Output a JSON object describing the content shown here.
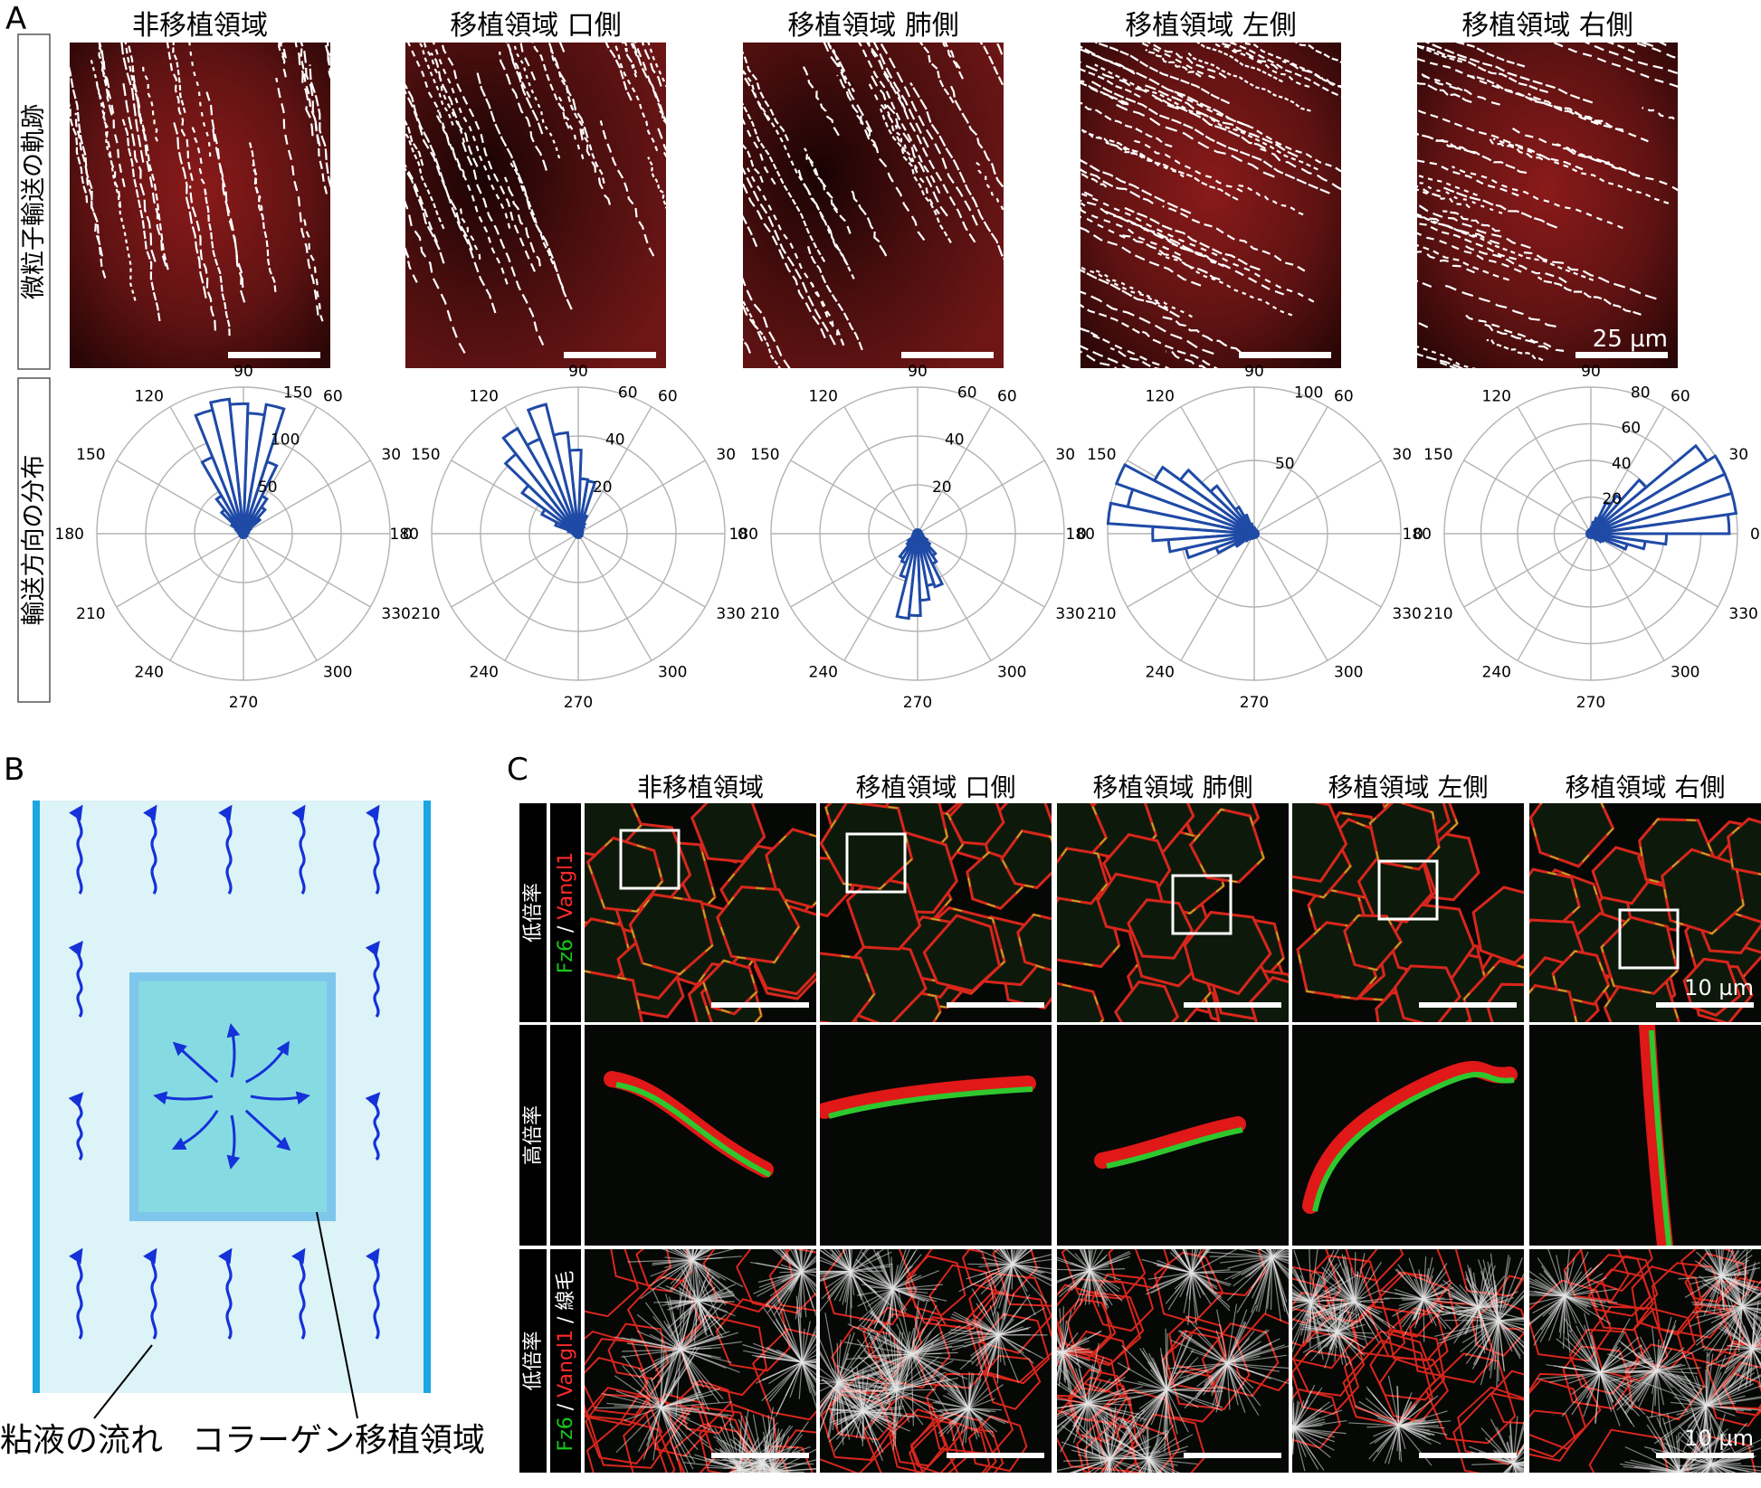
{
  "panel_a": {
    "letter": "A",
    "columns": [
      "非移植領域",
      "移植領域 口側",
      "移植領域 肺側",
      "移植領域 左側",
      "移植領域 右側"
    ],
    "row1_label": "微粒子輸送の軌跡",
    "row2_label": "輸送方向の分布",
    "scalebar_label": "25 µm",
    "angle_labels": [
      "0",
      "30",
      "60",
      "90",
      "120",
      "150",
      "180",
      "210",
      "240",
      "270",
      "300",
      "330"
    ],
    "polar": [
      {
        "rings": [
          "50",
          "100",
          "150"
        ],
        "rmax": 150,
        "dir": 92,
        "scale": 0.07,
        "peak": 1.0
      },
      {
        "rings": [
          "20",
          "40",
          "60"
        ],
        "rmax": 60,
        "dir": 110,
        "scale": 0.1,
        "peak": 0.9
      },
      {
        "rings": [
          "20",
          "40",
          "60"
        ],
        "rmax": 60,
        "dir": 270,
        "scale": 0.2,
        "peak": 0.48
      },
      {
        "rings": [
          "50",
          "100"
        ],
        "rmax": 100,
        "dir": 165,
        "scale": 0.1,
        "peak": 1.0
      },
      {
        "rings": [
          "20",
          "40",
          "60",
          "80"
        ],
        "rmax": 80,
        "dir": 20,
        "scale": 0.1,
        "peak": 1.0
      }
    ]
  },
  "panel_b": {
    "letter": "B",
    "label_flow": "粘液の流れ",
    "label_graft": "コラーゲン移植領域",
    "colors": {
      "bg": "#dcf3f7",
      "wall": "#1aa6e0",
      "graft": "#86dbe2",
      "graft_border": "#7fc6ec",
      "arrow": "#1531d8"
    }
  },
  "panel_c": {
    "letter": "C",
    "columns": [
      "非移植領域",
      "移植領域 口側",
      "移植領域 肺側",
      "移植領域 左側",
      "移植領域 右側"
    ],
    "rows": [
      {
        "mag": "低倍率",
        "stain": [
          {
            "t": "Fz6",
            "c": "#19c619"
          },
          {
            "t": " / ",
            "c": "#ffffff"
          },
          {
            "t": "Vangl1",
            "c": "#ff2a2a"
          }
        ]
      },
      {
        "mag": "高倍率",
        "stain": []
      },
      {
        "mag": "低倍率",
        "stain": [
          {
            "t": "Fz6",
            "c": "#19c619"
          },
          {
            "t": " / ",
            "c": "#ffffff"
          },
          {
            "t": "Vangl1",
            "c": "#ff2a2a"
          },
          {
            "t": " / ",
            "c": "#ffffff"
          },
          {
            "t": "線毛",
            "c": "#ffffff"
          }
        ]
      }
    ],
    "scalebar_label": "10 µm"
  }
}
